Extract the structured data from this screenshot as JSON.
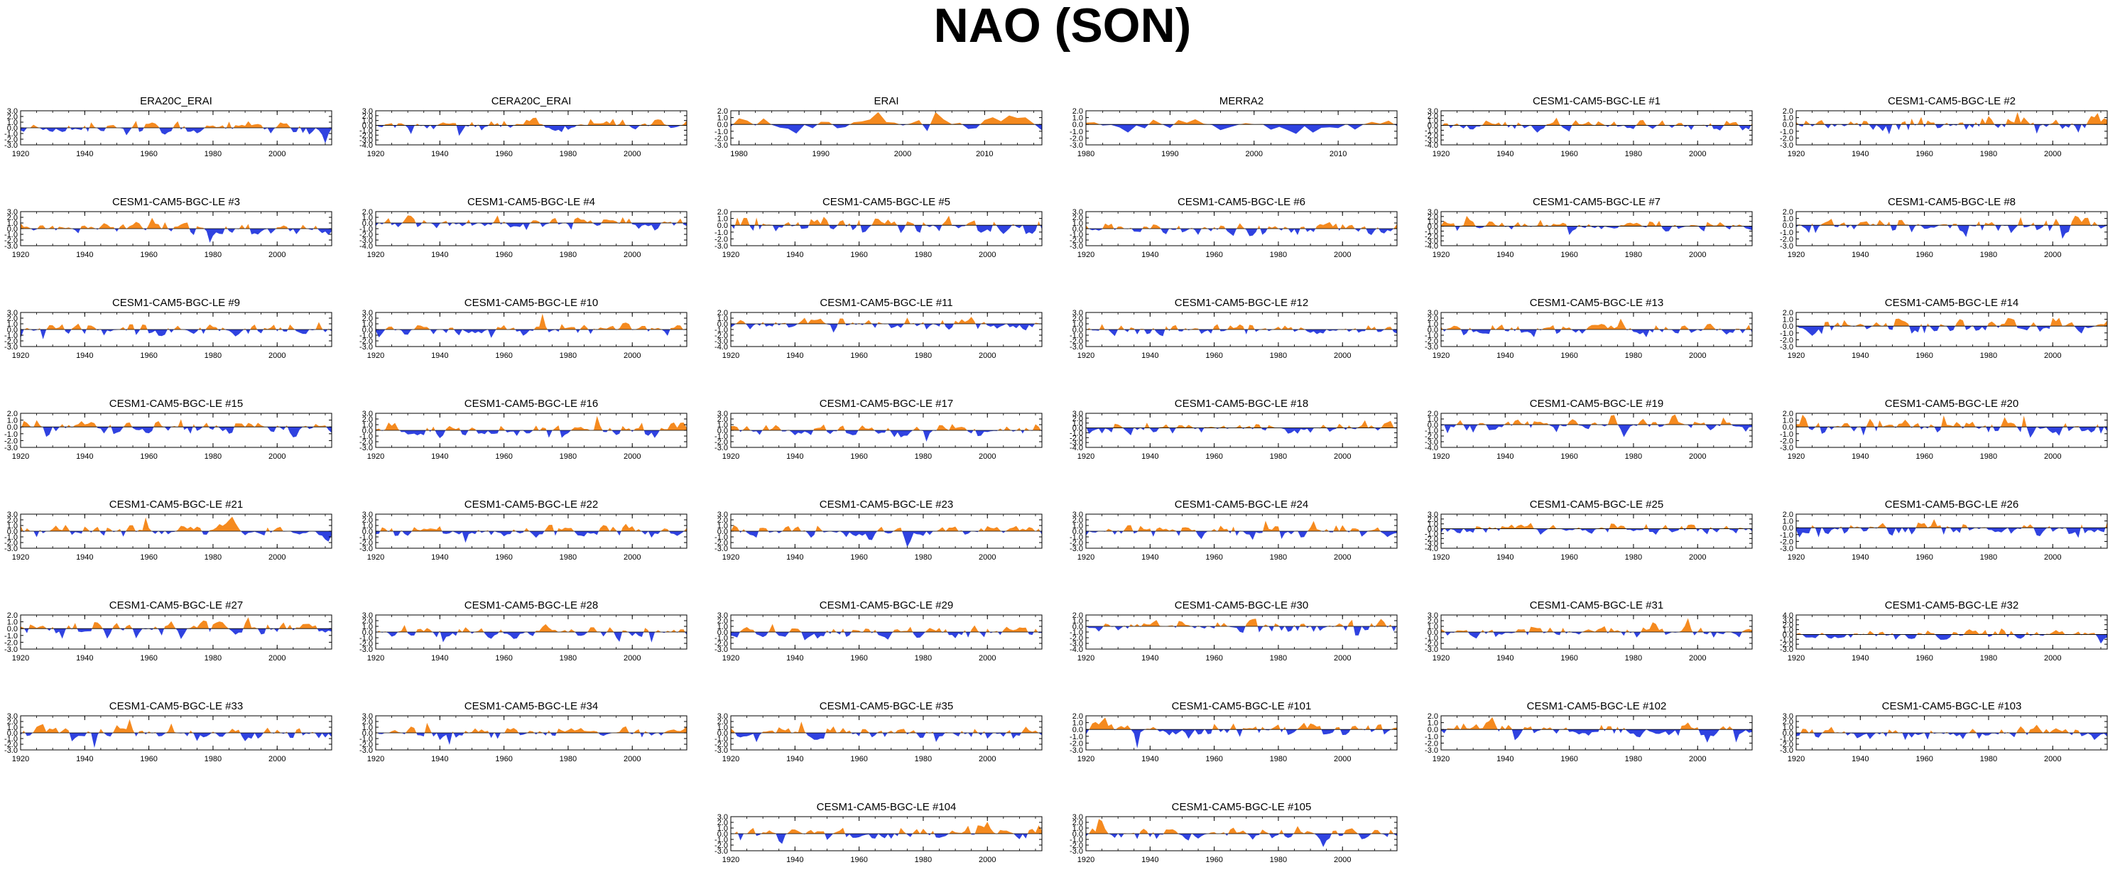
{
  "title": "NAO (SON)",
  "colors": {
    "positive": "#f58a1f",
    "negative": "#2f42e0",
    "axis": "#000000"
  },
  "chart_data": [
    {
      "type": "area",
      "title": "ERA20C_ERAI",
      "x_range": [
        1920,
        2017
      ],
      "xticks": [
        "1920",
        "1940",
        "1960",
        "1980",
        "2000"
      ],
      "yticks": [
        "3.0",
        "2.0",
        "1.0",
        "0.0",
        "-1.0",
        "-2.0",
        "-3.0"
      ],
      "ylim": [
        -3,
        3
      ]
    },
    {
      "type": "area",
      "title": "CERA20C_ERAI",
      "x_range": [
        1920,
        2017
      ],
      "xticks": [
        "1920",
        "1940",
        "1960",
        "1980",
        "2000"
      ],
      "yticks": [
        "3.0",
        "2.0",
        "1.0",
        "0.0",
        "-1.0",
        "-2.0",
        "-3.0",
        "-4.0"
      ],
      "ylim": [
        -4,
        3
      ]
    },
    {
      "type": "area",
      "title": "ERAI",
      "x_range": [
        1979,
        2017
      ],
      "xticks": [
        "1980",
        "1990",
        "2000",
        "2010"
      ],
      "yticks": [
        "2.0",
        "1.0",
        "0.0",
        "-1.0",
        "-2.0",
        "-3.0"
      ],
      "ylim": [
        -3,
        2
      ]
    },
    {
      "type": "area",
      "title": "MERRA2",
      "x_range": [
        1980,
        2017
      ],
      "xticks": [
        "1980",
        "1990",
        "2000",
        "2010"
      ],
      "yticks": [
        "2.0",
        "1.0",
        "0.0",
        "-1.0",
        "-2.0",
        "-3.0"
      ],
      "ylim": [
        -3,
        2
      ]
    },
    {
      "type": "area",
      "title": "CESM1-CAM5-BGC-LE #1",
      "x_range": [
        1920,
        2017
      ],
      "xticks": [
        "1920",
        "1940",
        "1960",
        "1980",
        "2000"
      ],
      "yticks": [
        "3.0",
        "2.0",
        "1.0",
        "0.0",
        "-1.0",
        "-2.0",
        "-3.0",
        "-4.0"
      ],
      "ylim": [
        -4,
        3
      ]
    },
    {
      "type": "area",
      "title": "CESM1-CAM5-BGC-LE #2",
      "x_range": [
        1920,
        2017
      ],
      "xticks": [
        "1920",
        "1940",
        "1960",
        "1980",
        "2000"
      ],
      "yticks": [
        "2.0",
        "1.0",
        "0.0",
        "-1.0",
        "-2.0",
        "-3.0"
      ],
      "ylim": [
        -3,
        2
      ]
    },
    {
      "type": "area",
      "title": "CESM1-CAM5-BGC-LE #3",
      "x_range": [
        1920,
        2017
      ],
      "xticks": [
        "1920",
        "1940",
        "1960",
        "1980",
        "2000"
      ],
      "yticks": [
        "3.0",
        "2.0",
        "1.0",
        "0.0",
        "-1.0",
        "-2.0",
        "-3.0"
      ],
      "ylim": [
        -3,
        3
      ]
    },
    {
      "type": "area",
      "title": "CESM1-CAM5-BGC-LE #4",
      "x_range": [
        1920,
        2017
      ],
      "xticks": [
        "1920",
        "1940",
        "1960",
        "1980",
        "2000"
      ],
      "yticks": [
        "2.0",
        "1.0",
        "0.0",
        "-1.0",
        "-2.0",
        "-3.0",
        "-4.0"
      ],
      "ylim": [
        -4,
        2
      ]
    },
    {
      "type": "area",
      "title": "CESM1-CAM5-BGC-LE #5",
      "x_range": [
        1920,
        2017
      ],
      "xticks": [
        "1920",
        "1940",
        "1960",
        "1980",
        "2000"
      ],
      "yticks": [
        "2.0",
        "1.0",
        "0.0",
        "-1.0",
        "-2.0",
        "-3.0"
      ],
      "ylim": [
        -3,
        2
      ]
    },
    {
      "type": "area",
      "title": "CESM1-CAM5-BGC-LE #6",
      "x_range": [
        1920,
        2017
      ],
      "xticks": [
        "1920",
        "1940",
        "1960",
        "1980",
        "2000"
      ],
      "yticks": [
        "3.0",
        "2.0",
        "1.0",
        "0.0",
        "-1.0",
        "-2.0",
        "-3.0"
      ],
      "ylim": [
        -3,
        3
      ]
    },
    {
      "type": "area",
      "title": "CESM1-CAM5-BGC-LE #7",
      "x_range": [
        1920,
        2017
      ],
      "xticks": [
        "1920",
        "1940",
        "1960",
        "1980",
        "2000"
      ],
      "yticks": [
        "3.0",
        "2.0",
        "1.0",
        "0.0",
        "-1.0",
        "-2.0",
        "-3.0",
        "-4.0"
      ],
      "ylim": [
        -4,
        3
      ]
    },
    {
      "type": "area",
      "title": "CESM1-CAM5-BGC-LE #8",
      "x_range": [
        1920,
        2017
      ],
      "xticks": [
        "1920",
        "1940",
        "1960",
        "1980",
        "2000"
      ],
      "yticks": [
        "2.0",
        "1.0",
        "0.0",
        "-1.0",
        "-2.0",
        "-3.0"
      ],
      "ylim": [
        -3,
        2
      ]
    },
    {
      "type": "area",
      "title": "CESM1-CAM5-BGC-LE #9",
      "x_range": [
        1920,
        2017
      ],
      "xticks": [
        "1920",
        "1940",
        "1960",
        "1980",
        "2000"
      ],
      "yticks": [
        "3.0",
        "2.0",
        "1.0",
        "0.0",
        "-1.0",
        "-2.0",
        "-3.0"
      ],
      "ylim": [
        -3,
        3
      ]
    },
    {
      "type": "area",
      "title": "CESM1-CAM5-BGC-LE #10",
      "x_range": [
        1920,
        2017
      ],
      "xticks": [
        "1920",
        "1940",
        "1960",
        "1980",
        "2000"
      ],
      "yticks": [
        "3.0",
        "2.0",
        "1.0",
        "0.0",
        "-1.0",
        "-2.0",
        "-3.0"
      ],
      "ylim": [
        -3,
        3
      ]
    },
    {
      "type": "area",
      "title": "CESM1-CAM5-BGC-LE #11",
      "x_range": [
        1920,
        2017
      ],
      "xticks": [
        "1920",
        "1940",
        "1960",
        "1980",
        "2000"
      ],
      "yticks": [
        "2.0",
        "1.0",
        "0.0",
        "-1.0",
        "-2.0",
        "-3.0",
        "-4.0"
      ],
      "ylim": [
        -4,
        2
      ]
    },
    {
      "type": "area",
      "title": "CESM1-CAM5-BGC-LE #12",
      "x_range": [
        1920,
        2017
      ],
      "xticks": [
        "1920",
        "1940",
        "1960",
        "1980",
        "2000"
      ],
      "yticks": [
        "3.0",
        "2.0",
        "1.0",
        "0.0",
        "-1.0",
        "-2.0",
        "-3.0"
      ],
      "ylim": [
        -3,
        3
      ]
    },
    {
      "type": "area",
      "title": "CESM1-CAM5-BGC-LE #13",
      "x_range": [
        1920,
        2017
      ],
      "xticks": [
        "1920",
        "1940",
        "1960",
        "1980",
        "2000"
      ],
      "yticks": [
        "3.0",
        "2.0",
        "1.0",
        "0.0",
        "-1.0",
        "-2.0",
        "-3.0"
      ],
      "ylim": [
        -3,
        3
      ]
    },
    {
      "type": "area",
      "title": "CESM1-CAM5-BGC-LE #14",
      "x_range": [
        1920,
        2017
      ],
      "xticks": [
        "1920",
        "1940",
        "1960",
        "1980",
        "2000"
      ],
      "yticks": [
        "2.0",
        "1.0",
        "0.0",
        "-1.0",
        "-2.0",
        "-3.0"
      ],
      "ylim": [
        -3,
        2
      ]
    },
    {
      "type": "area",
      "title": "CESM1-CAM5-BGC-LE #15",
      "x_range": [
        1920,
        2017
      ],
      "xticks": [
        "1920",
        "1940",
        "1960",
        "1980",
        "2000"
      ],
      "yticks": [
        "2.0",
        "1.0",
        "0.0",
        "-1.0",
        "-2.0",
        "-3.0"
      ],
      "ylim": [
        -3,
        2
      ]
    },
    {
      "type": "area",
      "title": "CESM1-CAM5-BGC-LE #16",
      "x_range": [
        1920,
        2017
      ],
      "xticks": [
        "1920",
        "1940",
        "1960",
        "1980",
        "2000"
      ],
      "yticks": [
        "3.0",
        "2.0",
        "1.0",
        "0.0",
        "-1.0",
        "-2.0",
        "-3.0"
      ],
      "ylim": [
        -3,
        3
      ]
    },
    {
      "type": "area",
      "title": "CESM1-CAM5-BGC-LE #17",
      "x_range": [
        1920,
        2017
      ],
      "xticks": [
        "1920",
        "1940",
        "1960",
        "1980",
        "2000"
      ],
      "yticks": [
        "3.0",
        "2.0",
        "1.0",
        "0.0",
        "-1.0",
        "-2.0",
        "-3.0"
      ],
      "ylim": [
        -3,
        3
      ]
    },
    {
      "type": "area",
      "title": "CESM1-CAM5-BGC-LE #18",
      "x_range": [
        1920,
        2017
      ],
      "xticks": [
        "1920",
        "1940",
        "1960",
        "1980",
        "2000"
      ],
      "yticks": [
        "3.0",
        "2.0",
        "1.0",
        "0.0",
        "-1.0",
        "-2.0",
        "-3.0",
        "-4.0"
      ],
      "ylim": [
        -4,
        3
      ]
    },
    {
      "type": "area",
      "title": "CESM1-CAM5-BGC-LE #19",
      "x_range": [
        1920,
        2017
      ],
      "xticks": [
        "1920",
        "1940",
        "1960",
        "1980",
        "2000"
      ],
      "yticks": [
        "2.0",
        "1.0",
        "0.0",
        "-1.0",
        "-2.0",
        "-3.0",
        "-4.0"
      ],
      "ylim": [
        -4,
        2
      ]
    },
    {
      "type": "area",
      "title": "CESM1-CAM5-BGC-LE #20",
      "x_range": [
        1920,
        2017
      ],
      "xticks": [
        "1920",
        "1940",
        "1960",
        "1980",
        "2000"
      ],
      "yticks": [
        "2.0",
        "1.0",
        "0.0",
        "-1.0",
        "-2.0",
        "-3.0"
      ],
      "ylim": [
        -3,
        2
      ]
    },
    {
      "type": "area",
      "title": "CESM1-CAM5-BGC-LE #21",
      "x_range": [
        1920,
        2017
      ],
      "xticks": [
        "1920",
        "1940",
        "1960",
        "1980",
        "2000"
      ],
      "yticks": [
        "3.0",
        "2.0",
        "1.0",
        "0.0",
        "-1.0",
        "-2.0",
        "-3.0"
      ],
      "ylim": [
        -3,
        3
      ]
    },
    {
      "type": "area",
      "title": "CESM1-CAM5-BGC-LE #22",
      "x_range": [
        1920,
        2017
      ],
      "xticks": [
        "1920",
        "1940",
        "1960",
        "1980",
        "2000"
      ],
      "yticks": [
        "3.0",
        "2.0",
        "1.0",
        "0.0",
        "-1.0",
        "-2.0",
        "-3.0"
      ],
      "ylim": [
        -3,
        3
      ]
    },
    {
      "type": "area",
      "title": "CESM1-CAM5-BGC-LE #23",
      "x_range": [
        1920,
        2017
      ],
      "xticks": [
        "1920",
        "1940",
        "1960",
        "1980",
        "2000"
      ],
      "yticks": [
        "3.0",
        "2.0",
        "1.0",
        "0.0",
        "-1.0",
        "-2.0",
        "-3.0"
      ],
      "ylim": [
        -3,
        3
      ]
    },
    {
      "type": "area",
      "title": "CESM1-CAM5-BGC-LE #24",
      "x_range": [
        1920,
        2017
      ],
      "xticks": [
        "1920",
        "1940",
        "1960",
        "1980",
        "2000"
      ],
      "yticks": [
        "3.0",
        "2.0",
        "1.0",
        "0.0",
        "-1.0",
        "-2.0",
        "-3.0"
      ],
      "ylim": [
        -3,
        3
      ]
    },
    {
      "type": "area",
      "title": "CESM1-CAM5-BGC-LE #25",
      "x_range": [
        1920,
        2017
      ],
      "xticks": [
        "1920",
        "1940",
        "1960",
        "1980",
        "2000"
      ],
      "yticks": [
        "3.0",
        "2.0",
        "1.0",
        "0.0",
        "-1.0",
        "-2.0",
        "-3.0",
        "-4.0"
      ],
      "ylim": [
        -4,
        3
      ]
    },
    {
      "type": "area",
      "title": "CESM1-CAM5-BGC-LE #26",
      "x_range": [
        1920,
        2017
      ],
      "xticks": [
        "1920",
        "1940",
        "1960",
        "1980",
        "2000"
      ],
      "yticks": [
        "2.0",
        "1.0",
        "0.0",
        "-1.0",
        "-2.0",
        "-3.0"
      ],
      "ylim": [
        -3,
        2
      ]
    },
    {
      "type": "area",
      "title": "CESM1-CAM5-BGC-LE #27",
      "x_range": [
        1920,
        2017
      ],
      "xticks": [
        "1920",
        "1940",
        "1960",
        "1980",
        "2000"
      ],
      "yticks": [
        "2.0",
        "1.0",
        "0.0",
        "-1.0",
        "-2.0",
        "-3.0"
      ],
      "ylim": [
        -3,
        2
      ]
    },
    {
      "type": "area",
      "title": "CESM1-CAM5-BGC-LE #28",
      "x_range": [
        1920,
        2017
      ],
      "xticks": [
        "1920",
        "1940",
        "1960",
        "1980",
        "2000"
      ],
      "yticks": [
        "3.0",
        "2.0",
        "1.0",
        "0.0",
        "-1.0",
        "-2.0",
        "-3.0"
      ],
      "ylim": [
        -3,
        3
      ]
    },
    {
      "type": "area",
      "title": "CESM1-CAM5-BGC-LE #29",
      "x_range": [
        1920,
        2017
      ],
      "xticks": [
        "1920",
        "1940",
        "1960",
        "1980",
        "2000"
      ],
      "yticks": [
        "3.0",
        "2.0",
        "1.0",
        "0.0",
        "-1.0",
        "-2.0",
        "-3.0"
      ],
      "ylim": [
        -3,
        3
      ]
    },
    {
      "type": "area",
      "title": "CESM1-CAM5-BGC-LE #30",
      "x_range": [
        1920,
        2017
      ],
      "xticks": [
        "1920",
        "1940",
        "1960",
        "1980",
        "2000"
      ],
      "yticks": [
        "2.0",
        "1.0",
        "0.0",
        "-1.0",
        "-2.0",
        "-3.0",
        "-4.0"
      ],
      "ylim": [
        -4,
        2
      ]
    },
    {
      "type": "area",
      "title": "CESM1-CAM5-BGC-LE #31",
      "x_range": [
        1920,
        2017
      ],
      "xticks": [
        "1920",
        "1940",
        "1960",
        "1980",
        "2000"
      ],
      "yticks": [
        "3.0",
        "2.0",
        "1.0",
        "0.0",
        "-1.0",
        "-2.0",
        "-3.0"
      ],
      "ylim": [
        -3,
        3
      ]
    },
    {
      "type": "area",
      "title": "CESM1-CAM5-BGC-LE #32",
      "x_range": [
        1920,
        2017
      ],
      "xticks": [
        "1920",
        "1940",
        "1960",
        "1980",
        "2000"
      ],
      "yticks": [
        "4.0",
        "3.0",
        "2.0",
        "1.0",
        "0.0",
        "-1.0",
        "-2.0",
        "-3.0"
      ],
      "ylim": [
        -3,
        4
      ]
    },
    {
      "type": "area",
      "title": "CESM1-CAM5-BGC-LE #33",
      "x_range": [
        1920,
        2017
      ],
      "xticks": [
        "1920",
        "1940",
        "1960",
        "1980",
        "2000"
      ],
      "yticks": [
        "3.0",
        "2.0",
        "1.0",
        "0.0",
        "-1.0",
        "-2.0",
        "-3.0"
      ],
      "ylim": [
        -3,
        3
      ]
    },
    {
      "type": "area",
      "title": "CESM1-CAM5-BGC-LE #34",
      "x_range": [
        1920,
        2017
      ],
      "xticks": [
        "1920",
        "1940",
        "1960",
        "1980",
        "2000"
      ],
      "yticks": [
        "3.0",
        "2.0",
        "1.0",
        "0.0",
        "-1.0",
        "-2.0",
        "-3.0"
      ],
      "ylim": [
        -3,
        3
      ]
    },
    {
      "type": "area",
      "title": "CESM1-CAM5-BGC-LE #35",
      "x_range": [
        1920,
        2017
      ],
      "xticks": [
        "1920",
        "1940",
        "1960",
        "1980",
        "2000"
      ],
      "yticks": [
        "3.0",
        "2.0",
        "1.0",
        "0.0",
        "-1.0",
        "-2.0",
        "-3.0"
      ],
      "ylim": [
        -3,
        3
      ]
    },
    {
      "type": "area",
      "title": "CESM1-CAM5-BGC-LE #101",
      "x_range": [
        1920,
        2017
      ],
      "xticks": [
        "1920",
        "1940",
        "1960",
        "1980",
        "2000"
      ],
      "yticks": [
        "2.0",
        "1.0",
        "0.0",
        "-1.0",
        "-2.0",
        "-3.0"
      ],
      "ylim": [
        -3,
        2
      ]
    },
    {
      "type": "area",
      "title": "CESM1-CAM5-BGC-LE #102",
      "x_range": [
        1920,
        2017
      ],
      "xticks": [
        "1920",
        "1940",
        "1960",
        "1980",
        "2000"
      ],
      "yticks": [
        "2.0",
        "1.0",
        "0.0",
        "-1.0",
        "-2.0",
        "-3.0"
      ],
      "ylim": [
        -3,
        2
      ]
    },
    {
      "type": "area",
      "title": "CESM1-CAM5-BGC-LE #103",
      "x_range": [
        1920,
        2017
      ],
      "xticks": [
        "1920",
        "1940",
        "1960",
        "1980",
        "2000"
      ],
      "yticks": [
        "3.0",
        "2.0",
        "1.0",
        "0.0",
        "-1.0",
        "-2.0",
        "-3.0"
      ],
      "ylim": [
        -3,
        3
      ]
    },
    {
      "type": "area",
      "title": "CESM1-CAM5-BGC-LE #104",
      "x_range": [
        1920,
        2017
      ],
      "xticks": [
        "1920",
        "1940",
        "1960",
        "1980",
        "2000"
      ],
      "yticks": [
        "3.0",
        "2.0",
        "1.0",
        "0.0",
        "-1.0",
        "-2.0",
        "-3.0"
      ],
      "ylim": [
        -3,
        3
      ]
    },
    {
      "type": "area",
      "title": "CESM1-CAM5-BGC-LE #105",
      "x_range": [
        1920,
        2017
      ],
      "xticks": [
        "1920",
        "1940",
        "1960",
        "1980",
        "2000"
      ],
      "yticks": [
        "3.0",
        "2.0",
        "1.0",
        "0.0",
        "-1.0",
        "-2.0",
        "-3.0"
      ],
      "ylim": [
        -3,
        3
      ]
    }
  ]
}
